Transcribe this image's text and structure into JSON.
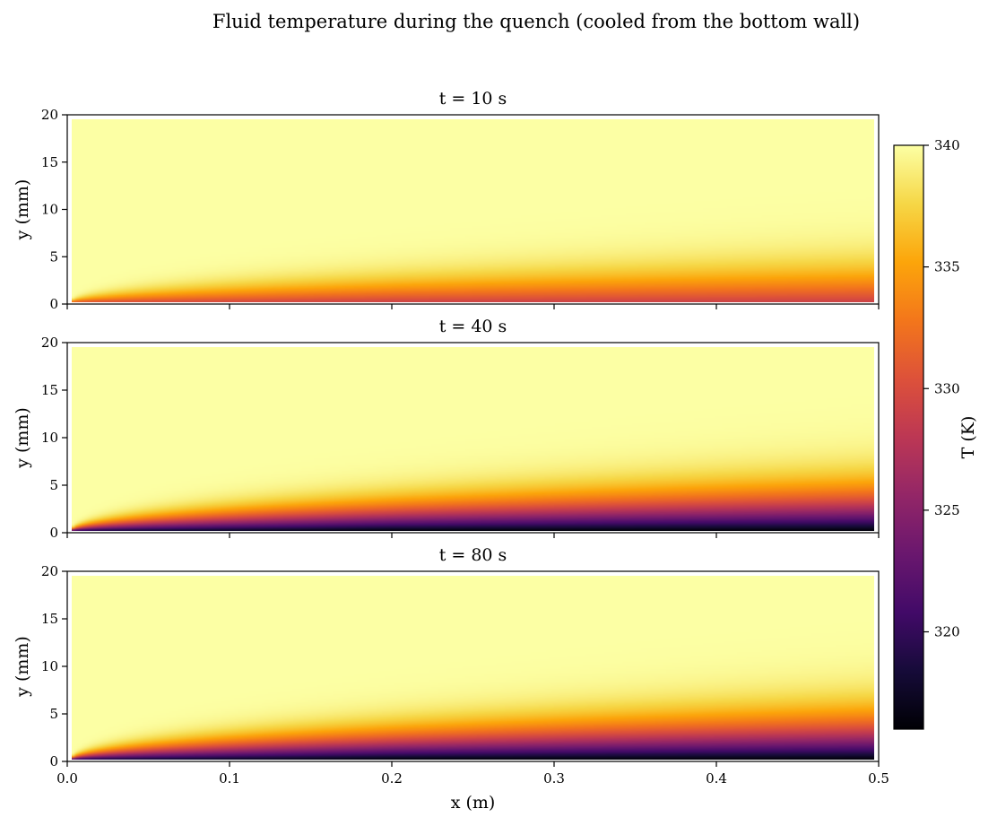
{
  "chart_data": {
    "type": "heatmap",
    "title": "Fluid temperature during the quench (cooled from the bottom wall)",
    "colormap": "inferno",
    "x_range": [
      0.0,
      0.5
    ],
    "y_range": [
      0,
      20
    ],
    "x_ticks": [
      "0.0",
      "0.1",
      "0.2",
      "0.3",
      "0.4",
      "0.5"
    ],
    "y_ticks": [
      "0",
      "5",
      "10",
      "15",
      "20"
    ],
    "xlabel": "x (m)",
    "ylabel": "y (mm)",
    "panels": [
      {
        "title": "t = 10 s",
        "time_s": 10,
        "wall_temperature_K": 329
      },
      {
        "title": "t = 40 s",
        "time_s": 40,
        "wall_temperature_K": 316
      },
      {
        "title": "t = 80 s",
        "time_s": 80,
        "wall_temperature_K": 316
      }
    ],
    "colorbar": {
      "label": "T (K)",
      "range": [
        316,
        340
      ],
      "ticks": [
        "340",
        "335",
        "330",
        "325",
        "320"
      ]
    },
    "grid": false
  }
}
